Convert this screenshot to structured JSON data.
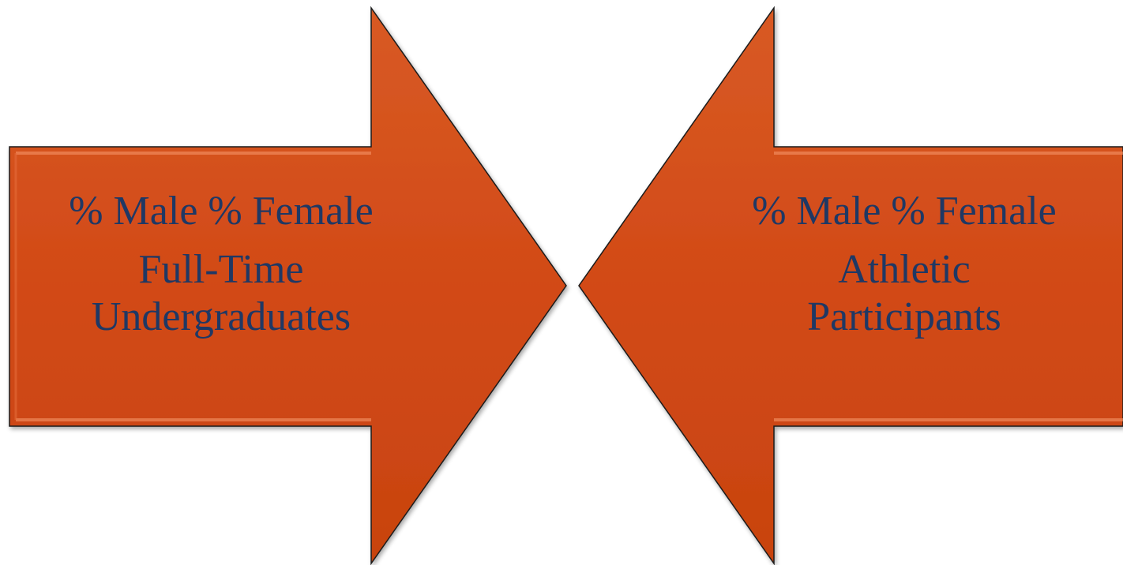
{
  "colors": {
    "arrow_fill": "#d24a17",
    "arrow_outline": "#1a1a1a",
    "text": "#1f3864"
  },
  "left_arrow": {
    "direction": "right",
    "line1": "% Male % Female",
    "line2": "Full-Time",
    "line3": "Undergraduates"
  },
  "right_arrow": {
    "direction": "left",
    "line1": "% Male % Female",
    "line2": "Athletic",
    "line3": "Participants"
  }
}
